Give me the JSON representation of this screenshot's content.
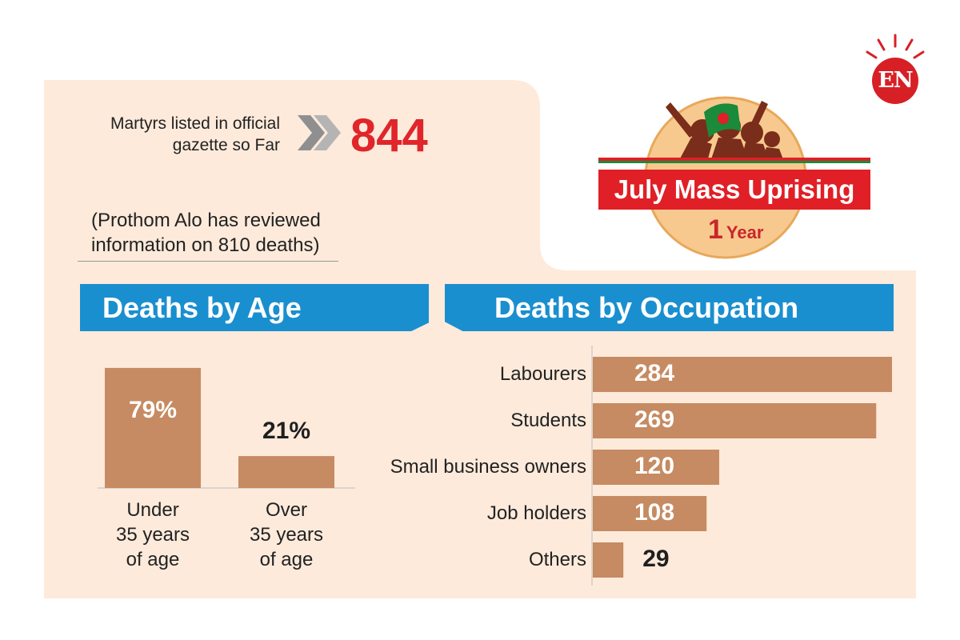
{
  "header": {
    "gazette_label": "Martyrs listed in official\ngazette so Far",
    "gazette_count": "844",
    "review_note": "(Prothom Alo has reviewed\ninformation on 810 deaths)"
  },
  "badge": {
    "title": "July Mass Uprising",
    "year_number": "1",
    "year_word": "Year",
    "logo_text": "EN"
  },
  "colors": {
    "panel": "#fdeadb",
    "bar": "#c68b62",
    "banner": "#1a8fcf",
    "accent_red": "#e0252b",
    "flag_green": "#1b8a3a"
  },
  "chart_data": [
    {
      "type": "bar",
      "title": "Deaths by Age",
      "categories": [
        "Under\n35 years\nof age",
        "Over\n35 years\nof age"
      ],
      "values": [
        79,
        21
      ],
      "value_labels": [
        "79%",
        "21%"
      ],
      "ylim": [
        0,
        100
      ],
      "grid": false
    },
    {
      "type": "bar",
      "orientation": "horizontal",
      "title": "Deaths by Occupation",
      "categories": [
        "Labourers",
        "Students",
        "Small business owners",
        "Job holders",
        "Others"
      ],
      "values": [
        284,
        269,
        120,
        108,
        29
      ],
      "value_labels": [
        "284",
        "269",
        "120",
        "108",
        "29"
      ],
      "xlim": [
        0,
        284
      ],
      "grid": false
    }
  ]
}
